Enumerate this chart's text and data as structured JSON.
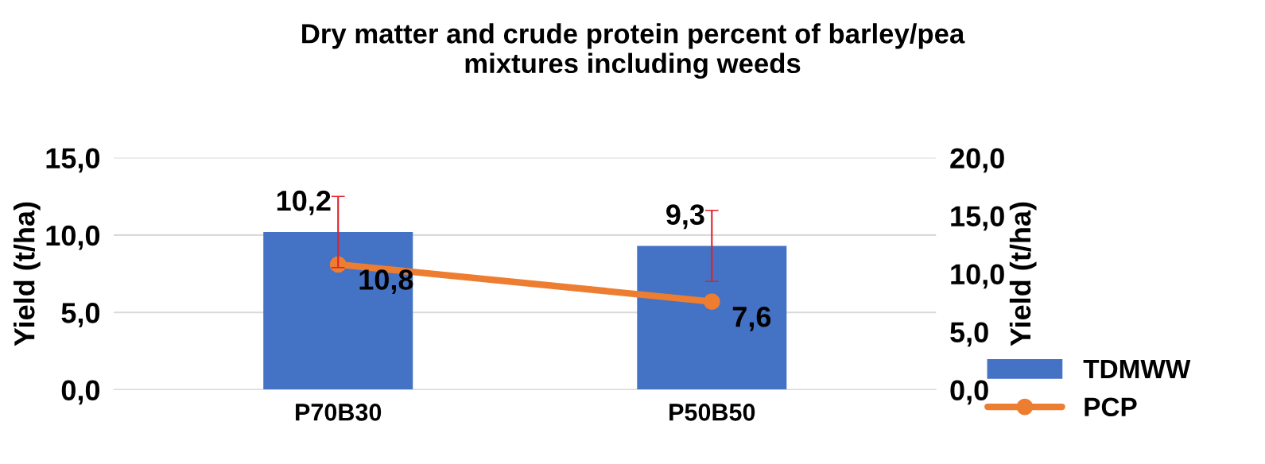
{
  "chart_data": {
    "type": "bar",
    "title": "Dry matter and crude protein percent of barley/pea\nmixtures including weeds",
    "ylabel": "Yield (t/ha)",
    "y2label": "Yield (t/ha)",
    "categories": [
      "P70B30",
      "P50B50"
    ],
    "series": [
      {
        "name": "TDMWW",
        "color": "#4472c4",
        "values": [
          10.2,
          9.3
        ],
        "value_labels": [
          "10,2",
          "9,3"
        ],
        "errors": [
          2.3,
          2.3
        ]
      },
      {
        "name": "PCP",
        "type": "line",
        "axis": "y2",
        "color": "#ed7d31",
        "values": [
          10.8,
          7.6
        ],
        "value_labels": [
          "10,8",
          "7,6"
        ],
        "marker": "circle"
      }
    ],
    "ylim": [
      0,
      15
    ],
    "yticks": [
      {
        "value": 0,
        "label": "0,0"
      },
      {
        "value": 5,
        "label": "5,0"
      },
      {
        "value": 10,
        "label": "10,0"
      },
      {
        "value": 15,
        "label": "15,0"
      }
    ],
    "y2lim": [
      0,
      20
    ],
    "y2ticks": [
      {
        "value": 0,
        "label": "0,0"
      },
      {
        "value": 5,
        "label": "5,0"
      },
      {
        "value": 10,
        "label": "10,0"
      },
      {
        "value": 15,
        "label": "15,0"
      },
      {
        "value": 20,
        "label": "20,0"
      }
    ],
    "grid": "y",
    "legend": "right"
  }
}
